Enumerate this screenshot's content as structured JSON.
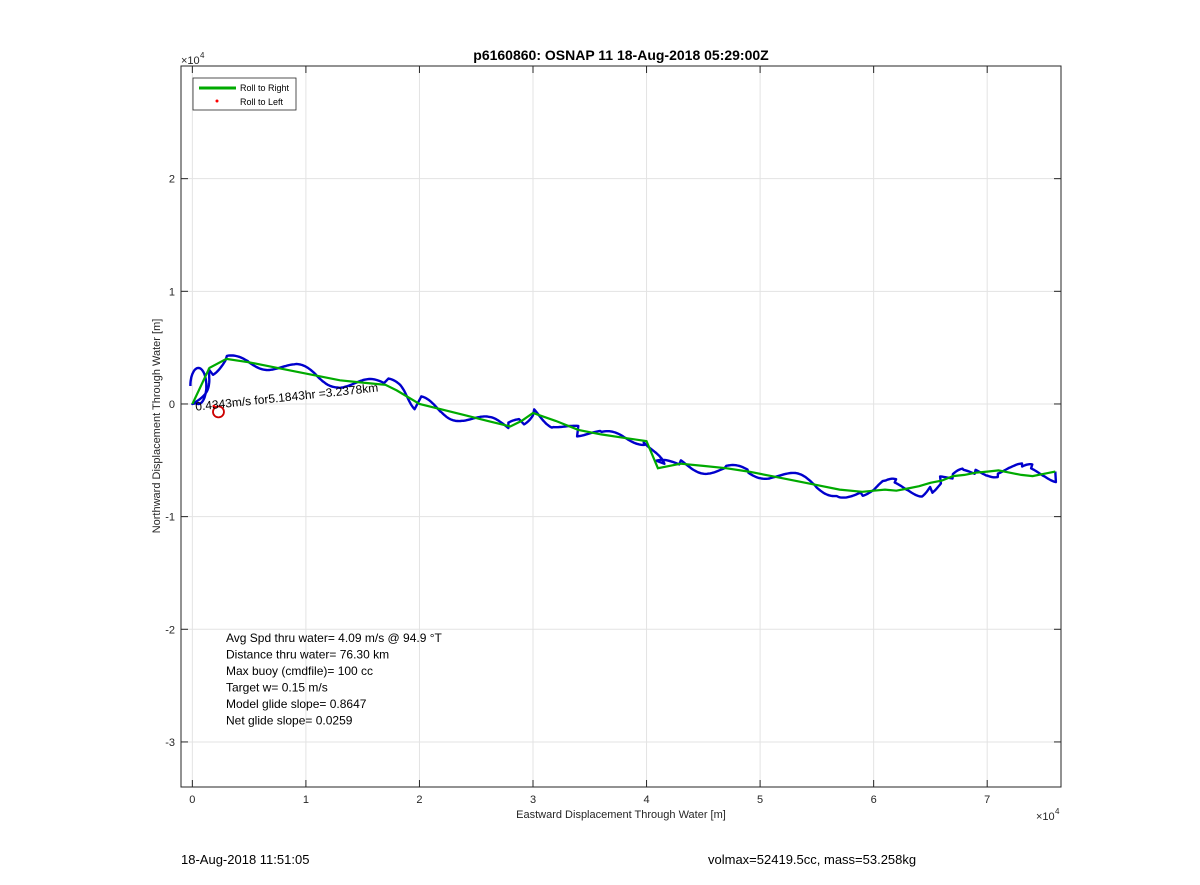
{
  "chart_data": {
    "type": "line",
    "title": "p6160860: OSNAP 11 18-Aug-2018 05:29:00Z",
    "xlabel": "Eastward Displacement Through Water [m]",
    "ylabel": "Northward Displacement Through Water [m]",
    "xlim": [
      -1000,
      76500
    ],
    "ylim": [
      -34000,
      30000
    ],
    "x_exponent_label": "×10^4",
    "y_exponent_label": "×10^4",
    "x_ticks": [
      0,
      10000,
      20000,
      30000,
      40000,
      50000,
      60000,
      70000
    ],
    "x_tick_labels": [
      "0",
      "1",
      "2",
      "3",
      "4",
      "5",
      "6",
      "7"
    ],
    "y_ticks": [
      -30000,
      -20000,
      -10000,
      0,
      10000,
      20000
    ],
    "y_tick_labels": [
      "-3",
      "-2",
      "-1",
      "0",
      "1",
      "2"
    ],
    "grid": true,
    "legend_position": "top-left",
    "legend": [
      {
        "label": "Roll to Right",
        "color": "#00aa00",
        "style": "line"
      },
      {
        "label": "Roll to Left",
        "color": "#ff0000",
        "style": "dot"
      }
    ],
    "series": [
      {
        "name": "Roll to Right",
        "color": "#00aa00",
        "x": [
          0,
          1500,
          3000,
          5000,
          7000,
          9000,
          11000,
          13000,
          15000,
          17000,
          18000,
          20000,
          22000,
          24000,
          26000,
          28000,
          29000,
          30000,
          32000,
          34000,
          36000,
          38000,
          40000,
          41000,
          43000,
          45000,
          47000,
          49000,
          51000,
          53000,
          55000,
          57000,
          59000,
          60000,
          61000,
          62000,
          63000,
          64000,
          65000,
          66000,
          67000,
          68000,
          69000,
          70000,
          71000,
          72000,
          73000,
          74000,
          75000,
          76000
        ],
        "y": [
          0,
          3200,
          4000,
          3700,
          3300,
          2900,
          2500,
          2100,
          1900,
          1700,
          1200,
          0,
          -500,
          -1000,
          -1500,
          -2000,
          -1500,
          -800,
          -1500,
          -2300,
          -2700,
          -3000,
          -3300,
          -5700,
          -5300,
          -5500,
          -5700,
          -6000,
          -6400,
          -6800,
          -7200,
          -7600,
          -7800,
          -7700,
          -7600,
          -7700,
          -7500,
          -7300,
          -7000,
          -6800,
          -6400,
          -6300,
          -6100,
          -6000,
          -5900,
          -6100,
          -6300,
          -6400,
          -6200,
          -6000
        ]
      },
      {
        "name": "Roll to Left",
        "color": "#ff0000",
        "x": [
          1900
        ],
        "y": [
          -200
        ]
      }
    ],
    "track_color": "#0000cc",
    "start_marker": {
      "x": 2300,
      "y": -700,
      "color": "#cc0000"
    },
    "start_label": "0.4343m/s for5.1843hr =3.2378km",
    "annotations": [
      "Avg Spd thru water=  4.09 m/s @  94.9 °T",
      "Distance thru water= 76.30 km",
      "Max buoy (cmdfile)= 100 cc",
      "Target w= 0.15 m/s",
      "Model glide slope= 0.8647",
      "Net glide slope= 0.0259"
    ]
  },
  "footer": {
    "timestamp": "18-Aug-2018 11:51:05",
    "summary": "volmax=52419.5cc, mass=53.258kg"
  }
}
